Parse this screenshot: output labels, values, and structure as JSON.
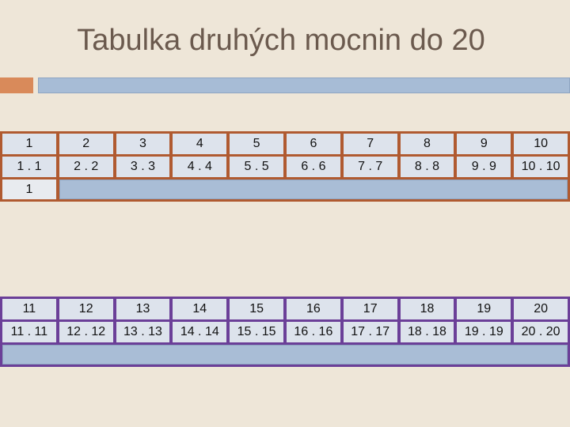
{
  "title": "Tabulka druhých mocnin do 20",
  "tables": [
    {
      "rows": [
        [
          "1",
          "2",
          "3",
          "4",
          "5",
          "6",
          "7",
          "8",
          "9",
          "10"
        ],
        [
          "1 . 1",
          "2 . 2",
          "3 . 3",
          "4 . 4",
          "5 . 5",
          "6 . 6",
          "7 . 7",
          "8 . 8",
          "9 . 9",
          "10 . 10"
        ],
        [
          "1"
        ]
      ]
    },
    {
      "rows": [
        [
          "11",
          "12",
          "13",
          "14",
          "15",
          "16",
          "17",
          "18",
          "19",
          "20"
        ],
        [
          "11 . 11",
          "12 . 12",
          "13 . 13",
          "14 . 14",
          "15 . 15",
          "16 . 16",
          "17 . 17",
          "18 . 18",
          "19 . 19",
          "20 . 20"
        ]
      ]
    }
  ]
}
